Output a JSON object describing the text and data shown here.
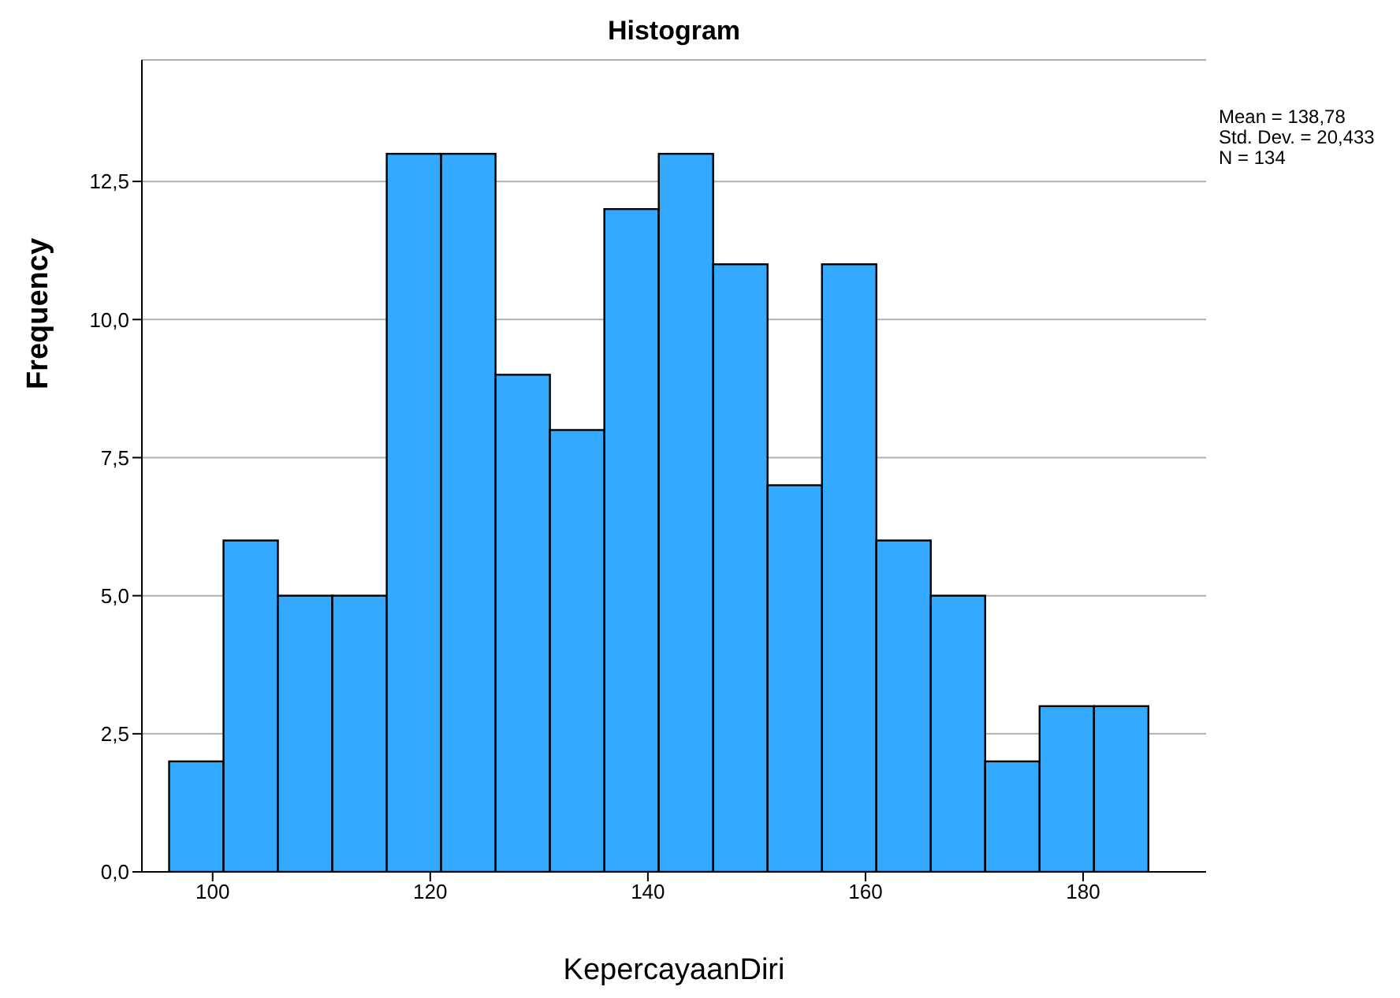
{
  "chart_data": {
    "type": "histogram",
    "title": "Histogram",
    "xlabel": "KepercayaanDiri",
    "ylabel": "Frequency",
    "bins": [
      96,
      101,
      106,
      111,
      116,
      121,
      126,
      131,
      136,
      141,
      146,
      151,
      156,
      161,
      166,
      171,
      176,
      181,
      186
    ],
    "values": [
      2,
      6,
      5,
      5,
      13,
      13,
      9,
      8,
      12,
      13,
      11,
      7,
      11,
      6,
      5,
      2,
      3,
      3
    ],
    "color": "#33aaff",
    "xlim": [
      93.5,
      191.3
    ],
    "xticks": [
      100,
      120,
      140,
      160,
      180
    ],
    "ylim": [
      0,
      14.7
    ],
    "yticks": [
      {
        "value": 0,
        "label": "0,0"
      },
      {
        "value": 2.5,
        "label": "2,5"
      },
      {
        "value": 5,
        "label": "5,0"
      },
      {
        "value": 7.5,
        "label": "7,5"
      },
      {
        "value": 10,
        "label": "10,0"
      },
      {
        "value": 12.5,
        "label": "12,5"
      }
    ],
    "grid": "y",
    "annotations": [
      "Mean = 138,78",
      "Std. Dev. = 20,433",
      "N = 134"
    ]
  }
}
